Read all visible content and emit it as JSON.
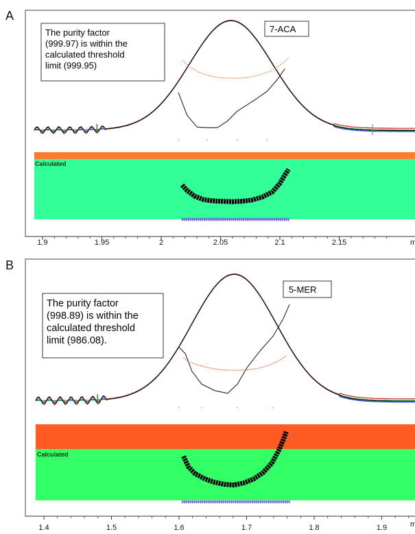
{
  "chart_data": [
    {
      "type": "line",
      "panel_label": "A",
      "compound_label": "7-ACA",
      "annotation_lines": [
        "The purity factor",
        "(999.97) is within the",
        "calculated threshold",
        "limit (999.95)"
      ],
      "band_label": "Calculated",
      "x_ticks": [
        "1.9",
        "1.95",
        "2",
        "2.05",
        "2.1",
        "2.15"
      ],
      "x_unit_fragment": "m",
      "xlim": [
        1.89,
        2.195
      ],
      "peak": {
        "apex": 2.047,
        "apex_signal": 1.0,
        "width": 0.033,
        "baseline": 0.05
      },
      "start_marker_x": 1.94,
      "end_marker_x": 2.16,
      "purity_curve": {
        "x": [
          2.008,
          2.012,
          2.018,
          2.025,
          2.032,
          2.04,
          2.048,
          2.056,
          2.064,
          2.072,
          2.08,
          2.086,
          2.09,
          2.093
        ],
        "y": [
          0.58,
          0.45,
          0.32,
          0.24,
          0.21,
          0.2,
          0.19,
          0.2,
          0.23,
          0.3,
          0.42,
          0.62,
          0.82,
          0.95
        ]
      },
      "threshold_curve": {
        "x": [
          2.008,
          2.014,
          2.022,
          2.03,
          2.038,
          2.046,
          2.054,
          2.062,
          2.07,
          2.078,
          2.084,
          2.089,
          2.093
        ],
        "y": [
          0.88,
          0.76,
          0.66,
          0.6,
          0.57,
          0.56,
          0.56,
          0.58,
          0.62,
          0.68,
          0.76,
          0.84,
          0.92
        ]
      },
      "lower_curve": {
        "x": [
          2.005,
          2.012,
          2.02,
          2.028,
          2.036,
          2.044,
          2.052,
          2.06,
          2.068,
          2.076,
          2.084,
          2.09
        ],
        "y": [
          0.62,
          0.3,
          0.14,
          0.13,
          0.13,
          0.22,
          0.36,
          0.45,
          0.54,
          0.64,
          0.8,
          0.95
        ]
      },
      "marker_bar": [
        2.008,
        2.093
      ],
      "colors": {
        "orange": "#ff7a2e",
        "green": "#33ff99",
        "marker": "#7755ff"
      }
    },
    {
      "type": "line",
      "panel_label": "B",
      "compound_label": "5-MER",
      "annotation_lines": [
        "The purity factor",
        "(998.89) is within the",
        "calculated threshold",
        "limit (986.08)."
      ],
      "band_label": "Calculated",
      "x_ticks": [
        "1.4",
        "1.5",
        "1.6",
        "1.7",
        "1.8",
        "1.9"
      ],
      "x_unit_fragment": "m",
      "xlim": [
        1.385,
        1.97
      ],
      "peak": {
        "apex": 1.69,
        "apex_signal": 1.0,
        "width": 0.065,
        "baseline": 0.05
      },
      "start_marker_x": 1.48,
      "end_marker_x": null,
      "purity_curve": {
        "x": [
          1.612,
          1.62,
          1.63,
          1.645,
          1.66,
          1.675,
          1.69,
          1.705,
          1.72,
          1.735,
          1.748,
          1.758,
          1.765,
          1.77
        ],
        "y": [
          0.58,
          0.42,
          0.32,
          0.24,
          0.19,
          0.16,
          0.15,
          0.18,
          0.24,
          0.34,
          0.48,
          0.66,
          0.82,
          0.95
        ]
      },
      "threshold_curve": {
        "x": [
          1.612,
          1.62,
          1.635,
          1.65,
          1.665,
          1.68,
          1.695,
          1.71,
          1.725,
          1.74,
          1.752,
          1.762,
          1.77
        ],
        "y": [
          0.62,
          0.52,
          0.44,
          0.38,
          0.34,
          0.32,
          0.32,
          0.33,
          0.36,
          0.42,
          0.5,
          0.58,
          0.66
        ]
      },
      "lower_curve": {
        "x": [
          1.605,
          1.615,
          1.625,
          1.64,
          1.66,
          1.68,
          1.695,
          1.71,
          1.73,
          1.75,
          1.765,
          1.775
        ],
        "y": [
          0.62,
          0.55,
          0.36,
          0.22,
          0.15,
          0.12,
          0.22,
          0.4,
          0.58,
          0.74,
          0.92,
          1.08
        ]
      },
      "marker_bar": [
        1.61,
        1.775
      ],
      "colors": {
        "orange": "#ff5a22",
        "green": "#33ff66",
        "marker": "#6655ff"
      }
    }
  ]
}
